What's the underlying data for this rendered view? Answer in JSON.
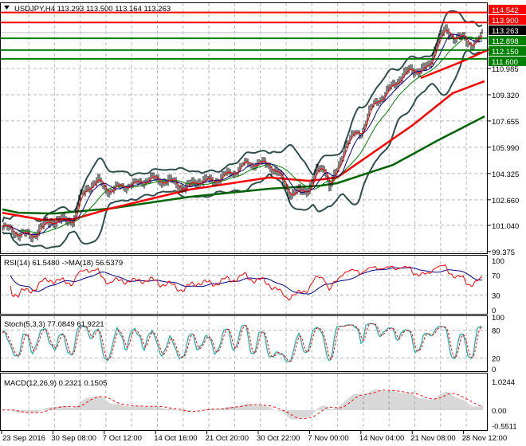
{
  "header": {
    "symbol_info": "USDJPY,H4  113.293 113.500 113.164 113.263",
    "dropdown_icon": "triangle-down-icon"
  },
  "price_axis": {
    "ticks": [
      "110.985",
      "109.320",
      "107.655",
      "105.990",
      "104.325",
      "102.660",
      "101.040",
      "99.375"
    ],
    "tick_values": [
      110.985,
      109.32,
      107.655,
      105.99,
      104.325,
      102.66,
      101.04,
      99.375
    ]
  },
  "levels": [
    {
      "label": "114.542",
      "value": 114.542,
      "color": "#ff0000"
    },
    {
      "label": "113.900",
      "value": 113.9,
      "color": "#ff0000"
    },
    {
      "label": "113.263",
      "value": 113.263,
      "color": "#000000"
    },
    {
      "label": "112.898",
      "value": 112.898,
      "color": "#008000"
    },
    {
      "label": "112.150",
      "value": 112.15,
      "color": "#008000"
    },
    {
      "label": "111.600",
      "value": 111.6,
      "color": "#008000"
    }
  ],
  "time_axis": [
    "23 Sep 2016",
    "30 Sep 08:00",
    "7 Oct 12:00",
    "14 Oct 16:00",
    "21 Oct 20:00",
    "30 Oct 22:00",
    "7 Nov 00:00",
    "14 Nov 04:00",
    "21 Nov 08:00",
    "28 Nov 12:00"
  ],
  "rsi": {
    "label": "RSI(14) 61.5480  ->MA(18) 56.5379",
    "ticks": [
      "100",
      "70",
      "30",
      "0"
    ],
    "tick_values": [
      100,
      70,
      30,
      0
    ]
  },
  "stoch": {
    "label": "Stoch(5,3,3) 77.0849 61.9221",
    "ticks": [
      "100",
      "80",
      "20",
      "0"
    ],
    "tick_values": [
      100,
      80,
      20,
      0
    ]
  },
  "macd": {
    "label": "MACD(12,26,9) 0.2321 0.1505",
    "ticks": [
      "1.0244",
      "0.00",
      "-0.5511"
    ],
    "tick_values": [
      1.0244,
      0,
      -0.5511
    ]
  },
  "chart_data": {
    "type": "candlestick",
    "title": "USDJPY,H4",
    "x_unit": "key index (0-121 across visible range)",
    "ylim": [
      99.375,
      114.542
    ],
    "close_path": [
      [
        0,
        100.93
      ],
      [
        4,
        100.53
      ],
      [
        7,
        100.33
      ],
      [
        10,
        100.93
      ],
      [
        12,
        101.34
      ],
      [
        15,
        101.29
      ],
      [
        18,
        101.44
      ],
      [
        19,
        102.45
      ],
      [
        21,
        103.46
      ],
      [
        24,
        103.81
      ],
      [
        27,
        103.2
      ],
      [
        30,
        103.6
      ],
      [
        33,
        103.6
      ],
      [
        35,
        103.9
      ],
      [
        38,
        103.96
      ],
      [
        40,
        103.9
      ],
      [
        43,
        103.71
      ],
      [
        46,
        103.36
      ],
      [
        49,
        103.9
      ],
      [
        52,
        103.81
      ],
      [
        55,
        104.1
      ],
      [
        58,
        104.47
      ],
      [
        61,
        104.97
      ],
      [
        64,
        104.97
      ],
      [
        67,
        104.87
      ],
      [
        69,
        104.32
      ],
      [
        72,
        103.1
      ],
      [
        75,
        103.1
      ],
      [
        77,
        103.46
      ],
      [
        79,
        104.47
      ],
      [
        81,
        104.72
      ],
      [
        82,
        103.46
      ],
      [
        84,
        104.47
      ],
      [
        86,
        106.24
      ],
      [
        88,
        106.74
      ],
      [
        90,
        107.0
      ],
      [
        92,
        108.26
      ],
      [
        94,
        109.0
      ],
      [
        96,
        109.37
      ],
      [
        98,
        109.9
      ],
      [
        100,
        110.53
      ],
      [
        102,
        110.78
      ],
      [
        104,
        110.88
      ],
      [
        107,
        111.0
      ],
      [
        109,
        112.8
      ],
      [
        111,
        113.3
      ],
      [
        113,
        113.05
      ],
      [
        115,
        112.95
      ],
      [
        117,
        112.55
      ],
      [
        118,
        112.7
      ],
      [
        120,
        112.9
      ],
      [
        121,
        113.263
      ]
    ],
    "ma_red": [
      [
        0,
        101.84
      ],
      [
        10,
        101.39
      ],
      [
        18,
        101.44
      ],
      [
        27,
        102.1
      ],
      [
        47,
        103.31
      ],
      [
        67,
        104.07
      ],
      [
        77,
        103.86
      ],
      [
        84,
        104.07
      ],
      [
        103,
        107.4
      ],
      [
        113,
        109.42
      ],
      [
        121,
        110.18
      ]
    ],
    "ma_green": [
      [
        0,
        102.05
      ],
      [
        4,
        101.84
      ],
      [
        13,
        101.79
      ],
      [
        27,
        102.1
      ],
      [
        47,
        102.85
      ],
      [
        67,
        103.36
      ],
      [
        80,
        103.56
      ],
      [
        84,
        103.71
      ],
      [
        98,
        104.87
      ],
      [
        109,
        106.39
      ],
      [
        121,
        107.95
      ]
    ],
    "trendline": [
      [
        105,
        110.38
      ],
      [
        115,
        111.39
      ],
      [
        123,
        112.3
      ]
    ],
    "last": {
      "open": 113.293,
      "high": 113.5,
      "low": 113.164,
      "close": 113.263
    }
  }
}
